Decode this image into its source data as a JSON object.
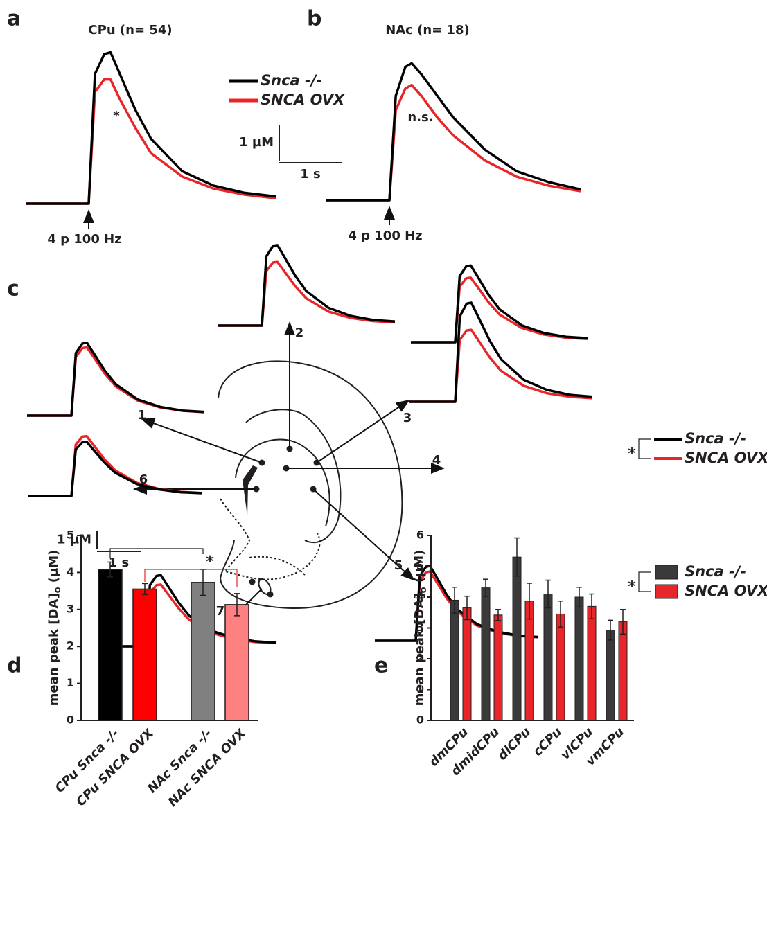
{
  "panel_labels": [
    "a",
    "b",
    "c",
    "d",
    "e"
  ],
  "panel_c": {
    "scale_bar": {
      "y": {
        "value": 1,
        "label": "1 µM"
      },
      "x": {
        "value": 1,
        "label": "1 s"
      }
    },
    "annotation": "*"
  },
  "chart_data": [
    {
      "type": "line",
      "title": "CPu (n= 54)",
      "annotation": "*",
      "stimulus_label": "4 p 100 Hz",
      "scale_bar": {
        "y": {
          "value": 1,
          "label": "1 µM"
        },
        "x": {
          "value": 1,
          "label": "1 s"
        }
      },
      "x": [
        -1,
        0,
        0.1,
        0.25,
        0.35,
        0.5,
        0.75,
        1,
        1.5,
        2,
        2.5,
        3
      ],
      "series": [
        {
          "name": "Snca -/-",
          "color": "#000000",
          "values": [
            0,
            0,
            3.6,
            4.15,
            4.2,
            3.6,
            2.6,
            1.8,
            0.9,
            0.5,
            0.3,
            0.2
          ]
        },
        {
          "name": "SNCA OVX",
          "color": "#e8262a",
          "values": [
            0,
            0,
            3.1,
            3.45,
            3.45,
            2.9,
            2.1,
            1.4,
            0.75,
            0.42,
            0.25,
            0.15
          ]
        }
      ]
    },
    {
      "type": "line",
      "title": "NAc (n= 18)",
      "annotation": "n.s.",
      "stimulus_label": "4 p 100 Hz",
      "x": [
        -1,
        0,
        0.1,
        0.25,
        0.35,
        0.5,
        0.75,
        1,
        1.5,
        2,
        2.5,
        3
      ],
      "series": [
        {
          "name": "Snca -/-",
          "color": "#000000",
          "values": [
            0,
            0,
            2.9,
            3.7,
            3.8,
            3.5,
            2.9,
            2.3,
            1.4,
            0.8,
            0.5,
            0.3
          ]
        },
        {
          "name": "SNCA OVX",
          "color": "#e8262a",
          "values": [
            0,
            0,
            2.5,
            3.1,
            3.2,
            2.9,
            2.3,
            1.8,
            1.1,
            0.65,
            0.4,
            0.25
          ]
        }
      ]
    },
    {
      "type": "line",
      "site_label": "1",
      "x": [
        -1,
        0,
        0.1,
        0.25,
        0.35,
        0.5,
        0.75,
        1,
        1.5,
        2,
        2.5,
        3
      ],
      "series": [
        {
          "name": "Snca -/-",
          "color": "#000000",
          "values": [
            0,
            0,
            3.35,
            3.86,
            3.9,
            3.35,
            2.42,
            1.68,
            0.86,
            0.47,
            0.27,
            0.2
          ]
        },
        {
          "name": "SNCA OVX",
          "color": "#e8262a",
          "values": [
            0,
            0,
            3.14,
            3.61,
            3.65,
            3.14,
            2.26,
            1.57,
            0.8,
            0.44,
            0.26,
            0.18
          ]
        }
      ]
    },
    {
      "type": "line",
      "site_label": "2",
      "x": [
        -1,
        0,
        0.1,
        0.25,
        0.35,
        0.5,
        0.75,
        1,
        1.5,
        2,
        2.5,
        3
      ],
      "series": [
        {
          "name": "Snca -/-",
          "color": "#000000",
          "values": [
            0,
            0,
            3.7,
            4.26,
            4.3,
            3.7,
            2.67,
            1.85,
            0.95,
            0.52,
            0.3,
            0.22
          ]
        },
        {
          "name": "SNCA OVX",
          "color": "#e8262a",
          "values": [
            0,
            0,
            2.92,
            3.37,
            3.4,
            2.92,
            2.11,
            1.46,
            0.75,
            0.41,
            0.24,
            0.17
          ]
        }
      ]
    },
    {
      "type": "line",
      "site_label": "3",
      "x": [
        -1,
        0,
        0.1,
        0.25,
        0.35,
        0.5,
        0.75,
        1,
        1.5,
        2,
        2.5,
        3
      ],
      "series": [
        {
          "name": "Snca -/-",
          "color": "#000000",
          "values": [
            0,
            0,
            4.56,
            5.25,
            5.3,
            4.56,
            3.29,
            2.28,
            1.17,
            0.64,
            0.37,
            0.27
          ]
        },
        {
          "name": "SNCA OVX",
          "color": "#e8262a",
          "values": [
            0,
            0,
            3.31,
            3.81,
            3.85,
            3.31,
            2.39,
            1.66,
            0.85,
            0.46,
            0.27,
            0.19
          ]
        }
      ]
    },
    {
      "type": "line",
      "site_label": "4",
      "x": [
        -1,
        0,
        0.1,
        0.25,
        0.35,
        0.5,
        0.75,
        1,
        1.5,
        2,
        2.5,
        3
      ],
      "series": [
        {
          "name": "Snca -/-",
          "color": "#000000",
          "values": [
            0,
            0,
            3.53,
            4.06,
            4.1,
            3.53,
            2.54,
            1.76,
            0.9,
            0.49,
            0.29,
            0.21
          ]
        },
        {
          "name": "SNCA OVX",
          "color": "#e8262a",
          "values": [
            0,
            0,
            2.97,
            3.42,
            3.45,
            2.97,
            2.14,
            1.48,
            0.76,
            0.41,
            0.24,
            0.17
          ]
        }
      ]
    },
    {
      "type": "line",
      "site_label": "5",
      "x": [
        -1,
        0,
        0.1,
        0.25,
        0.35,
        0.5,
        0.75,
        1,
        1.5,
        2,
        2.5,
        3
      ],
      "series": [
        {
          "name": "Snca -/-",
          "color": "#000000",
          "values": [
            0,
            0,
            3.44,
            3.96,
            4.0,
            3.44,
            2.48,
            1.72,
            0.88,
            0.48,
            0.28,
            0.2
          ]
        },
        {
          "name": "SNCA OVX",
          "color": "#e8262a",
          "values": [
            0,
            0,
            3.18,
            3.66,
            3.7,
            3.18,
            2.29,
            1.59,
            0.81,
            0.44,
            0.26,
            0.19
          ]
        }
      ]
    },
    {
      "type": "line",
      "site_label": "6",
      "x": [
        -1,
        0,
        0.1,
        0.25,
        0.35,
        0.5,
        0.75,
        1,
        1.5,
        2,
        2.5,
        3
      ],
      "series": [
        {
          "name": "Snca -/-",
          "color": "#000000",
          "values": [
            0,
            0,
            2.49,
            2.87,
            2.9,
            2.49,
            1.8,
            1.25,
            0.64,
            0.35,
            0.2,
            0.15
          ]
        },
        {
          "name": "SNCA OVX",
          "color": "#e8262a",
          "values": [
            0,
            0,
            2.75,
            3.17,
            3.2,
            2.75,
            1.98,
            1.38,
            0.7,
            0.38,
            0.22,
            0.16
          ]
        }
      ]
    },
    {
      "type": "line",
      "site_label": "7",
      "x": [
        -1,
        0,
        0.1,
        0.25,
        0.35,
        0.5,
        0.75,
        1,
        1.5,
        2,
        2.5,
        3
      ],
      "series": [
        {
          "name": "Snca -/-",
          "color": "#000000",
          "values": [
            0,
            0,
            3.27,
            3.76,
            3.8,
            3.27,
            2.36,
            1.63,
            0.84,
            0.46,
            0.27,
            0.19
          ]
        },
        {
          "name": "SNCA OVX",
          "color": "#e8262a",
          "values": [
            0,
            0,
            2.84,
            3.27,
            3.3,
            2.84,
            2.05,
            1.42,
            0.73,
            0.4,
            0.23,
            0.17
          ]
        }
      ]
    },
    {
      "type": "bar",
      "ylabel": {
        "main": "mean peak [DA]",
        "sub": "o",
        "unit": " (µM)"
      },
      "significance": "*",
      "categories": [
        "CPu Snca -/-",
        "CPu SNCA OVX",
        "NAc Snca -/-",
        "NAc SNCA OVX"
      ],
      "values": [
        4.08,
        3.55,
        3.73,
        3.13
      ],
      "errors": [
        0.2,
        0.15,
        0.35,
        0.3
      ],
      "colors": [
        "#000000",
        "#ff0000",
        "#808080",
        "#ff8080"
      ],
      "ylim": [
        0,
        5
      ],
      "yticks": [
        0,
        1,
        2,
        3,
        4,
        5
      ]
    },
    {
      "type": "groupedbar",
      "ylabel": {
        "main": "mean peak [DA]",
        "sub": "o",
        "unit": " (µM)"
      },
      "significance": "*",
      "categories": [
        "dmCPu",
        "dmidCPu",
        "dlCPu",
        "cCPu",
        "vlCPu",
        "vmCPu"
      ],
      "series": [
        {
          "name": "Snca -/-",
          "color": "#3a3a3a",
          "values": [
            3.9,
            4.3,
            5.3,
            4.1,
            4.0,
            2.93
          ],
          "errors": [
            0.42,
            0.28,
            0.62,
            0.45,
            0.32,
            0.32
          ]
        },
        {
          "name": "SNCA OVX",
          "color": "#e8262a",
          "values": [
            3.65,
            3.42,
            3.87,
            3.45,
            3.7,
            3.2
          ],
          "errors": [
            0.38,
            0.18,
            0.58,
            0.42,
            0.4,
            0.4
          ]
        }
      ],
      "ylim": [
        0,
        6
      ],
      "yticks": [
        0,
        1,
        2,
        3,
        4,
        5,
        6
      ]
    }
  ]
}
